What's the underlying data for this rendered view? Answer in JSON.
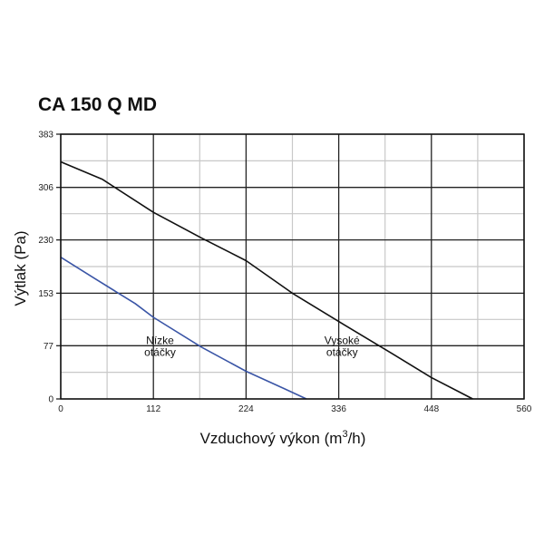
{
  "chart_data": {
    "type": "line",
    "title": "CA 150 Q MD",
    "xlabel": "Vzduchový výkon (m³/h)",
    "xlabel_main": "Vzduchový výkon (m",
    "xlabel_sup": "3",
    "xlabel_end": "/h)",
    "ylabel": "Výtlak (Pa)",
    "xlim": [
      0,
      560
    ],
    "ylim": [
      0,
      383
    ],
    "xticks": [
      0,
      112,
      224,
      336,
      448,
      560
    ],
    "yticks": [
      0,
      77,
      153,
      230,
      306,
      383
    ],
    "grid": true,
    "annotations": [
      {
        "lines": [
          "Nízke",
          "otáčky"
        ],
        "x": 120,
        "y": 70
      },
      {
        "lines": [
          "Vysoké",
          "otáčky"
        ],
        "x": 340,
        "y": 70
      }
    ],
    "series": [
      {
        "name": "Vysoké otáčky",
        "color": "#111111",
        "points": [
          [
            0,
            343
          ],
          [
            50,
            318
          ],
          [
            112,
            270
          ],
          [
            170,
            233
          ],
          [
            224,
            200
          ],
          [
            280,
            153
          ],
          [
            336,
            112
          ],
          [
            400,
            66
          ],
          [
            448,
            31
          ],
          [
            498,
            0
          ]
        ]
      },
      {
        "name": "Nízke otáčky",
        "color": "#3a55a6",
        "points": [
          [
            0,
            205
          ],
          [
            40,
            175
          ],
          [
            90,
            138
          ],
          [
            112,
            118
          ],
          [
            170,
            75
          ],
          [
            224,
            40
          ],
          [
            270,
            15
          ],
          [
            297,
            0
          ]
        ]
      }
    ]
  }
}
